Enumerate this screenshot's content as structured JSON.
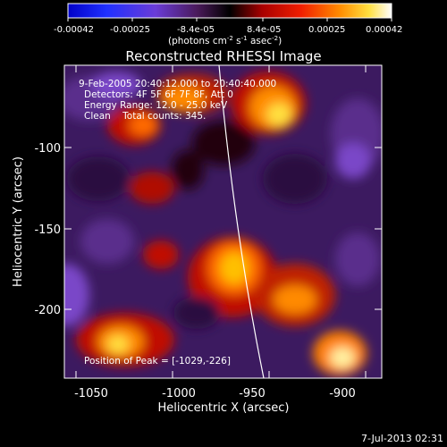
{
  "colorbar": {
    "ticks": [
      "-0.00042",
      "-0.00025",
      "-8.4e-05",
      "8.4e-05",
      "0.00025",
      "0.00042"
    ],
    "units_main": "(photons cm",
    "units_exp1": "-2",
    "units_mid": " s",
    "units_exp2": "-1",
    "units_tail": " asec",
    "units_exp3": "-2",
    "units_close": ")"
  },
  "plot": {
    "title": "Reconstructed RHESSI Image",
    "xlabel": "Heliocentric X (arcsec)",
    "ylabel": "Heliocentric Y (arcsec)",
    "xticks": [
      "-1050",
      "-1000",
      "-950",
      "-900"
    ],
    "yticks": [
      "-100",
      "-150",
      "-200"
    ],
    "info_lines": [
      "9-Feb-2005 20:40:12.000 to 20:40:40.000",
      "Detectors: 4F 5F 6F 7F 8F, Att 0",
      "Energy Range: 12.0 - 25.0 keV",
      "Clean    Total counts: 345."
    ],
    "peak_text": "Position of Peak = [-1029,-226]"
  },
  "footer": {
    "timestamp": "7-Jul-2013 02:31"
  },
  "colors": {
    "background": "#000000",
    "text": "#ffffff"
  }
}
